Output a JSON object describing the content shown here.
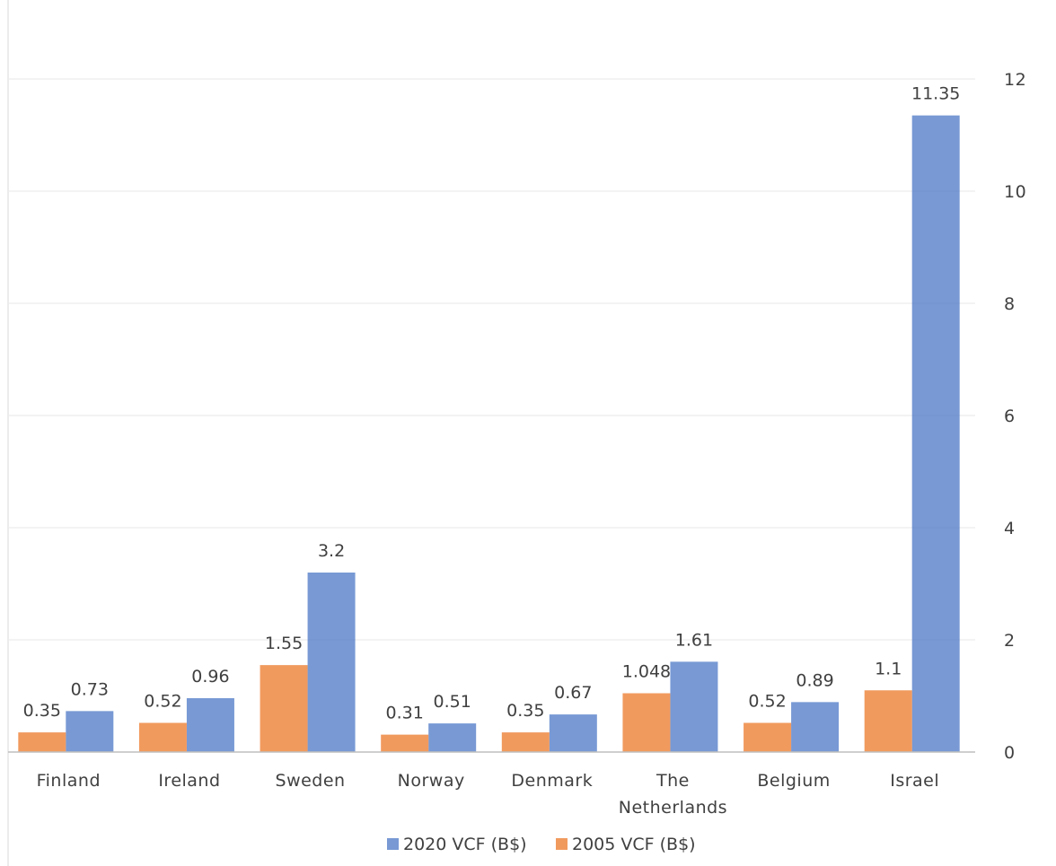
{
  "chart_data": {
    "type": "bar",
    "categories": [
      "Finland",
      "Ireland",
      "Sweden",
      "Norway",
      "Denmark",
      "The Netherlands",
      "Belgium",
      "Israel"
    ],
    "category_lines": [
      [
        "Finland"
      ],
      [
        "Ireland"
      ],
      [
        "Sweden"
      ],
      [
        "Norway"
      ],
      [
        "Denmark"
      ],
      [
        "The",
        "Netherlands"
      ],
      [
        "Belgium"
      ],
      [
        "Israel"
      ]
    ],
    "series": [
      {
        "name": "2020 VCF (B$)",
        "color": "#4472C4",
        "values": [
          0.73,
          0.96,
          3.2,
          0.51,
          0.67,
          1.61,
          0.89,
          11.35
        ],
        "labels": [
          "0.73",
          "0.96",
          "3.2",
          "0.51",
          "0.67",
          "1.61",
          "0.89",
          "11.35"
        ]
      },
      {
        "name": "2005 VCF (B$)",
        "color": "#ED7D31",
        "values": [
          0.35,
          0.52,
          1.55,
          0.31,
          0.35,
          1.048,
          0.52,
          1.1
        ],
        "labels": [
          "0.35",
          "0.52",
          "1.55",
          "0.31",
          "0.35",
          "1.048",
          "0.52",
          "1.1"
        ]
      }
    ],
    "title": "",
    "xlabel": "",
    "ylabel": "",
    "ylim": [
      0,
      12
    ],
    "yticks": [
      "0",
      "2",
      "4",
      "6",
      "8",
      "10",
      "12"
    ],
    "y_axis_side": "right",
    "grid": true,
    "legend": "bottom"
  }
}
